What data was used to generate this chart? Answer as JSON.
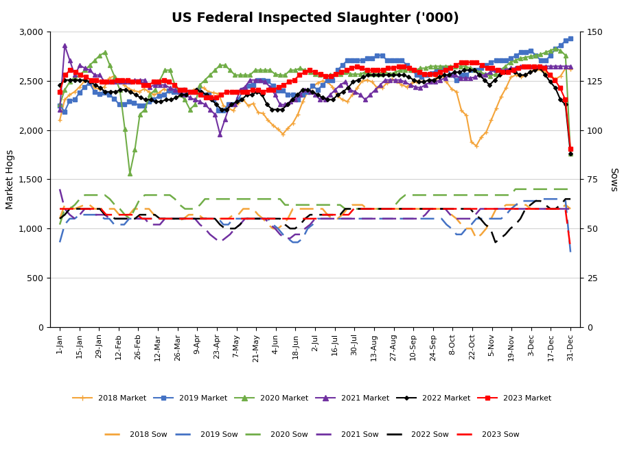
{
  "title": "US Federal Inspected Slaughter ('000)",
  "ylabel_left": "Market Hogs",
  "ylabel_right": "Sows",
  "xlim_labels": [
    "1-Jan",
    "15-Jan",
    "29-Jan",
    "12-Feb",
    "26-Feb",
    "12-Mar",
    "26-Mar",
    "9-Apr",
    "23-Apr",
    "7-May",
    "21-May",
    "4-Jun",
    "18-Jun",
    "2-Jul",
    "16-Jul",
    "30-Jul",
    "13-Aug",
    "27-Aug",
    "10-Sep",
    "24-Sep",
    "8-Oct",
    "22-Oct",
    "5-Nov",
    "19-Nov",
    "3-Dec",
    "17-Dec",
    "31-Dec"
  ],
  "ylim_left": [
    0,
    3000
  ],
  "ylim_right": [
    0,
    150
  ],
  "yticks_left": [
    0,
    500,
    1000,
    1500,
    2000,
    2500,
    3000
  ],
  "yticks_right": [
    0,
    25,
    50,
    75,
    100,
    125,
    150
  ],
  "colors": {
    "2018": "#f4a43a",
    "2019": "#4472c4",
    "2020": "#70ad47",
    "2021": "#7030a0",
    "2022": "#000000",
    "2023": "#ff0000"
  },
  "market_2018": [
    2100,
    2310,
    2360,
    2390,
    2440,
    2500,
    2480,
    2430,
    2420,
    2440,
    2530,
    2550,
    2500,
    2460,
    2420,
    2400,
    2390,
    2420,
    2390,
    2360,
    2380,
    2420,
    2390,
    2390,
    2410,
    2420,
    2390,
    2410,
    2430,
    2430,
    2390,
    2380,
    2370,
    2250,
    2220,
    2200,
    2280,
    2310,
    2250,
    2270,
    2180,
    2170,
    2100,
    2050,
    2010,
    1960,
    2020,
    2070,
    2160,
    2290,
    2390,
    2440,
    2480,
    2500,
    2490,
    2440,
    2350,
    2310,
    2290,
    2360,
    2430,
    2500,
    2510,
    2490,
    2430,
    2430,
    2480,
    2520,
    2490,
    2460,
    2440,
    2480,
    2490,
    2530,
    2560,
    2580,
    2530,
    2560,
    2490,
    2420,
    2390,
    2200,
    2150,
    1880,
    1840,
    1930,
    1980,
    2100,
    2220,
    2340,
    2430,
    2540,
    2560,
    2540,
    2560,
    2600,
    2610,
    2610,
    2590,
    2550,
    2520,
    2550,
    2630,
    2620
  ],
  "market_2019": [
    2250,
    2190,
    2300,
    2310,
    2380,
    2440,
    2480,
    2390,
    2370,
    2380,
    2360,
    2320,
    2260,
    2260,
    2290,
    2280,
    2250,
    2250,
    2290,
    2310,
    2350,
    2360,
    2400,
    2390,
    2390,
    2410,
    2390,
    2390,
    2410,
    2360,
    2360,
    2310,
    2200,
    2200,
    2260,
    2260,
    2310,
    2410,
    2450,
    2460,
    2510,
    2510,
    2500,
    2450,
    2400,
    2400,
    2360,
    2360,
    2310,
    2360,
    2390,
    2450,
    2410,
    2460,
    2510,
    2510,
    2610,
    2660,
    2710,
    2710,
    2710,
    2710,
    2730,
    2730,
    2760,
    2760,
    2710,
    2710,
    2710,
    2710,
    2660,
    2610,
    2560,
    2540,
    2560,
    2580,
    2610,
    2630,
    2630,
    2560,
    2510,
    2560,
    2560,
    2610,
    2610,
    2630,
    2660,
    2690,
    2710,
    2710,
    2710,
    2730,
    2760,
    2790,
    2790,
    2810,
    2760,
    2710,
    2710,
    2760,
    2830,
    2860,
    2910,
    2930
  ],
  "market_2020": [
    2260,
    2410,
    2490,
    2540,
    2560,
    2610,
    2660,
    2710,
    2760,
    2790,
    2660,
    2540,
    2410,
    2010,
    1560,
    1800,
    2160,
    2210,
    2360,
    2410,
    2510,
    2610,
    2610,
    2460,
    2360,
    2310,
    2210,
    2260,
    2460,
    2510,
    2560,
    2610,
    2660,
    2660,
    2610,
    2560,
    2560,
    2560,
    2560,
    2610,
    2610,
    2610,
    2610,
    2570,
    2560,
    2560,
    2610,
    2610,
    2630,
    2610,
    2590,
    2570,
    2560,
    2550,
    2560,
    2570,
    2570,
    2590,
    2570,
    2570,
    2570,
    2590,
    2570,
    2570,
    2570,
    2590,
    2570,
    2590,
    2610,
    2610,
    2610,
    2610,
    2630,
    2630,
    2650,
    2650,
    2650,
    2650,
    2650,
    2650,
    2650,
    2650,
    2630,
    2610,
    2590,
    2570,
    2550,
    2570,
    2610,
    2650,
    2690,
    2710,
    2730,
    2740,
    2750,
    2760,
    2770,
    2790,
    2810,
    2830,
    2810,
    2760,
    1760,
    null
  ],
  "market_2021": [
    2210,
    2860,
    2710,
    2560,
    2660,
    2630,
    2610,
    2560,
    2560,
    2490,
    2490,
    2490,
    2490,
    2490,
    2490,
    2510,
    2510,
    2510,
    2440,
    2460,
    2460,
    2460,
    2430,
    2410,
    2390,
    2360,
    2330,
    2310,
    2290,
    2260,
    2210,
    2160,
    1960,
    2110,
    2260,
    2260,
    2410,
    2440,
    2510,
    2510,
    2510,
    2490,
    2440,
    2360,
    2260,
    2260,
    2290,
    2310,
    2360,
    2410,
    2390,
    2360,
    2310,
    2310,
    2360,
    2410,
    2460,
    2490,
    2410,
    2390,
    2360,
    2310,
    2360,
    2410,
    2460,
    2510,
    2510,
    2510,
    2510,
    2490,
    2460,
    2440,
    2430,
    2460,
    2490,
    2490,
    2510,
    2530,
    2560,
    2560,
    2530,
    2530,
    2530,
    2540,
    2560,
    2560,
    2590,
    2610,
    2610,
    2610,
    2630,
    2630,
    2650,
    2650,
    2650,
    2650,
    2650,
    2650,
    2650,
    2650,
    2650,
    2650,
    2650,
    null
  ],
  "market_2022": [
    2460,
    2510,
    2510,
    2510,
    2510,
    2510,
    2490,
    2460,
    2430,
    2390,
    2390,
    2390,
    2410,
    2410,
    2390,
    2360,
    2330,
    2310,
    2310,
    2290,
    2290,
    2310,
    2310,
    2330,
    2360,
    2360,
    2390,
    2410,
    2390,
    2360,
    2310,
    2260,
    2210,
    2210,
    2260,
    2290,
    2310,
    2360,
    2360,
    2390,
    2360,
    2260,
    2210,
    2210,
    2210,
    2260,
    2310,
    2360,
    2410,
    2410,
    2390,
    2360,
    2330,
    2310,
    2310,
    2360,
    2390,
    2430,
    2490,
    2510,
    2540,
    2560,
    2560,
    2560,
    2560,
    2560,
    2560,
    2560,
    2560,
    2540,
    2510,
    2490,
    2490,
    2510,
    2510,
    2540,
    2560,
    2560,
    2590,
    2590,
    2610,
    2610,
    2610,
    2560,
    2510,
    2460,
    2510,
    2560,
    2590,
    2610,
    2590,
    2560,
    2560,
    2590,
    2610,
    2630,
    2560,
    2490,
    2430,
    2310,
    2260,
    1760,
    null,
    null
  ],
  "market_2023": [
    2390,
    2560,
    2610,
    2590,
    2560,
    2540,
    2510,
    2510,
    2490,
    2490,
    2490,
    2510,
    2510,
    2510,
    2490,
    2490,
    2460,
    2460,
    2490,
    2490,
    2510,
    2490,
    2460,
    2410,
    2410,
    2390,
    2390,
    2360,
    2330,
    2330,
    2330,
    2360,
    2390,
    2390,
    2390,
    2390,
    2390,
    2410,
    2410,
    2390,
    2410,
    2410,
    2440,
    2460,
    2490,
    2510,
    2560,
    2590,
    2610,
    2590,
    2570,
    2550,
    2550,
    2570,
    2590,
    2610,
    2630,
    2650,
    2630,
    2610,
    2610,
    2610,
    2610,
    2630,
    2630,
    2650,
    2650,
    2630,
    2610,
    2590,
    2570,
    2570,
    2570,
    2590,
    2610,
    2630,
    2660,
    2690,
    2690,
    2690,
    2690,
    2660,
    2630,
    2630,
    2610,
    2590,
    2590,
    2610,
    2630,
    2650,
    2650,
    2650,
    2650,
    2630,
    2560,
    2510,
    2430,
    2310,
    1810,
    null,
    null,
    null,
    null,
    null
  ],
  "sow_2018": [
    55,
    62,
    61,
    60,
    61,
    62,
    62,
    60,
    60,
    60,
    60,
    60,
    57,
    57,
    57,
    60,
    60,
    60,
    60,
    57,
    55,
    55,
    55,
    55,
    54,
    55,
    57,
    57,
    57,
    55,
    55,
    55,
    55,
    55,
    55,
    57,
    57,
    60,
    60,
    60,
    57,
    55,
    52,
    50,
    50,
    52,
    55,
    60,
    60,
    60,
    60,
    60,
    60,
    60,
    57,
    55,
    55,
    57,
    60,
    62,
    62,
    62,
    60,
    60,
    60,
    60,
    60,
    60,
    60,
    60,
    60,
    60,
    60,
    60,
    60,
    60,
    60,
    60,
    60,
    57,
    55,
    52,
    50,
    50,
    45,
    47,
    50,
    55,
    60,
    60,
    62,
    62,
    62,
    62,
    62,
    60,
    60,
    60,
    60,
    60,
    60,
    60,
    62,
    60
  ],
  "sow_2019": [
    43,
    52,
    55,
    55,
    57,
    57,
    57,
    57,
    57,
    55,
    55,
    52,
    52,
    52,
    55,
    55,
    55,
    55,
    55,
    55,
    55,
    55,
    55,
    55,
    55,
    55,
    55,
    55,
    55,
    55,
    55,
    55,
    55,
    52,
    52,
    55,
    55,
    55,
    55,
    55,
    55,
    55,
    55,
    52,
    50,
    47,
    45,
    43,
    43,
    45,
    50,
    52,
    55,
    55,
    55,
    55,
    55,
    55,
    55,
    55,
    55,
    55,
    55,
    55,
    55,
    55,
    55,
    55,
    55,
    55,
    55,
    55,
    55,
    55,
    55,
    55,
    55,
    55,
    52,
    50,
    47,
    47,
    50,
    52,
    55,
    55,
    55,
    55,
    55,
    55,
    57,
    60,
    62,
    64,
    64,
    64,
    64,
    65,
    65,
    65,
    65,
    65,
    64,
    38,
    null
  ],
  "sow_2020": [
    52,
    60,
    60,
    62,
    65,
    67,
    67,
    67,
    67,
    67,
    65,
    62,
    60,
    57,
    55,
    60,
    65,
    67,
    67,
    67,
    67,
    67,
    67,
    65,
    62,
    60,
    60,
    60,
    62,
    65,
    65,
    65,
    65,
    65,
    65,
    65,
    65,
    65,
    65,
    65,
    65,
    65,
    65,
    65,
    65,
    62,
    62,
    62,
    62,
    62,
    62,
    62,
    62,
    62,
    62,
    62,
    62,
    60,
    60,
    60,
    60,
    60,
    60,
    60,
    60,
    60,
    60,
    62,
    65,
    67,
    67,
    67,
    67,
    67,
    67,
    67,
    67,
    67,
    67,
    67,
    67,
    67,
    67,
    67,
    67,
    67,
    67,
    67,
    67,
    67,
    67,
    70,
    70,
    70,
    70,
    70,
    70,
    70,
    70,
    70,
    70,
    70,
    70,
    null
  ],
  "sow_2021": [
    70,
    60,
    57,
    55,
    57,
    60,
    60,
    57,
    57,
    57,
    55,
    55,
    55,
    55,
    55,
    55,
    55,
    55,
    52,
    52,
    52,
    55,
    55,
    55,
    55,
    55,
    55,
    55,
    52,
    50,
    47,
    45,
    43,
    45,
    47,
    50,
    52,
    55,
    55,
    55,
    55,
    55,
    52,
    50,
    47,
    45,
    45,
    47,
    47,
    50,
    52,
    55,
    55,
    55,
    55,
    55,
    55,
    55,
    55,
    55,
    55,
    55,
    55,
    55,
    55,
    55,
    55,
    55,
    55,
    55,
    55,
    55,
    55,
    57,
    60,
    60,
    60,
    60,
    57,
    55,
    55,
    55,
    55,
    57,
    60,
    60,
    60,
    60,
    60,
    60,
    60,
    60,
    60,
    60,
    60,
    60,
    60,
    60,
    60,
    60,
    60,
    60,
    60,
    null
  ],
  "sow_2022": [
    55,
    57,
    60,
    60,
    60,
    60,
    60,
    60,
    60,
    57,
    57,
    55,
    55,
    55,
    55,
    55,
    57,
    57,
    57,
    57,
    55,
    55,
    55,
    55,
    55,
    55,
    55,
    55,
    55,
    55,
    55,
    55,
    52,
    50,
    50,
    50,
    52,
    55,
    55,
    55,
    55,
    55,
    55,
    55,
    55,
    52,
    50,
    50,
    52,
    55,
    57,
    57,
    57,
    57,
    57,
    57,
    57,
    60,
    60,
    60,
    60,
    60,
    60,
    60,
    60,
    60,
    60,
    60,
    60,
    60,
    60,
    60,
    60,
    60,
    60,
    60,
    60,
    60,
    60,
    60,
    60,
    60,
    60,
    57,
    55,
    52,
    50,
    43,
    45,
    47,
    50,
    52,
    55,
    60,
    62,
    64,
    64,
    62,
    60,
    60,
    62,
    65,
    65,
    null,
    null
  ],
  "sow_2023": [
    60,
    60,
    60,
    60,
    60,
    60,
    60,
    60,
    60,
    57,
    57,
    57,
    57,
    57,
    57,
    57,
    55,
    55,
    55,
    55,
    55,
    55,
    55,
    55,
    55,
    55,
    55,
    55,
    55,
    55,
    55,
    55,
    55,
    55,
    55,
    55,
    55,
    55,
    55,
    55,
    55,
    55,
    55,
    55,
    55,
    55,
    55,
    55,
    55,
    55,
    55,
    57,
    57,
    57,
    57,
    57,
    57,
    60,
    60,
    60,
    60,
    60,
    60,
    60,
    60,
    60,
    60,
    60,
    60,
    60,
    60,
    60,
    60,
    60,
    60,
    60,
    60,
    60,
    60,
    60,
    60,
    60,
    60,
    60,
    60,
    60,
    60,
    60,
    60,
    60,
    60,
    60,
    60,
    60,
    60,
    60,
    60,
    60,
    60,
    40,
    null,
    null,
    null,
    null
  ]
}
